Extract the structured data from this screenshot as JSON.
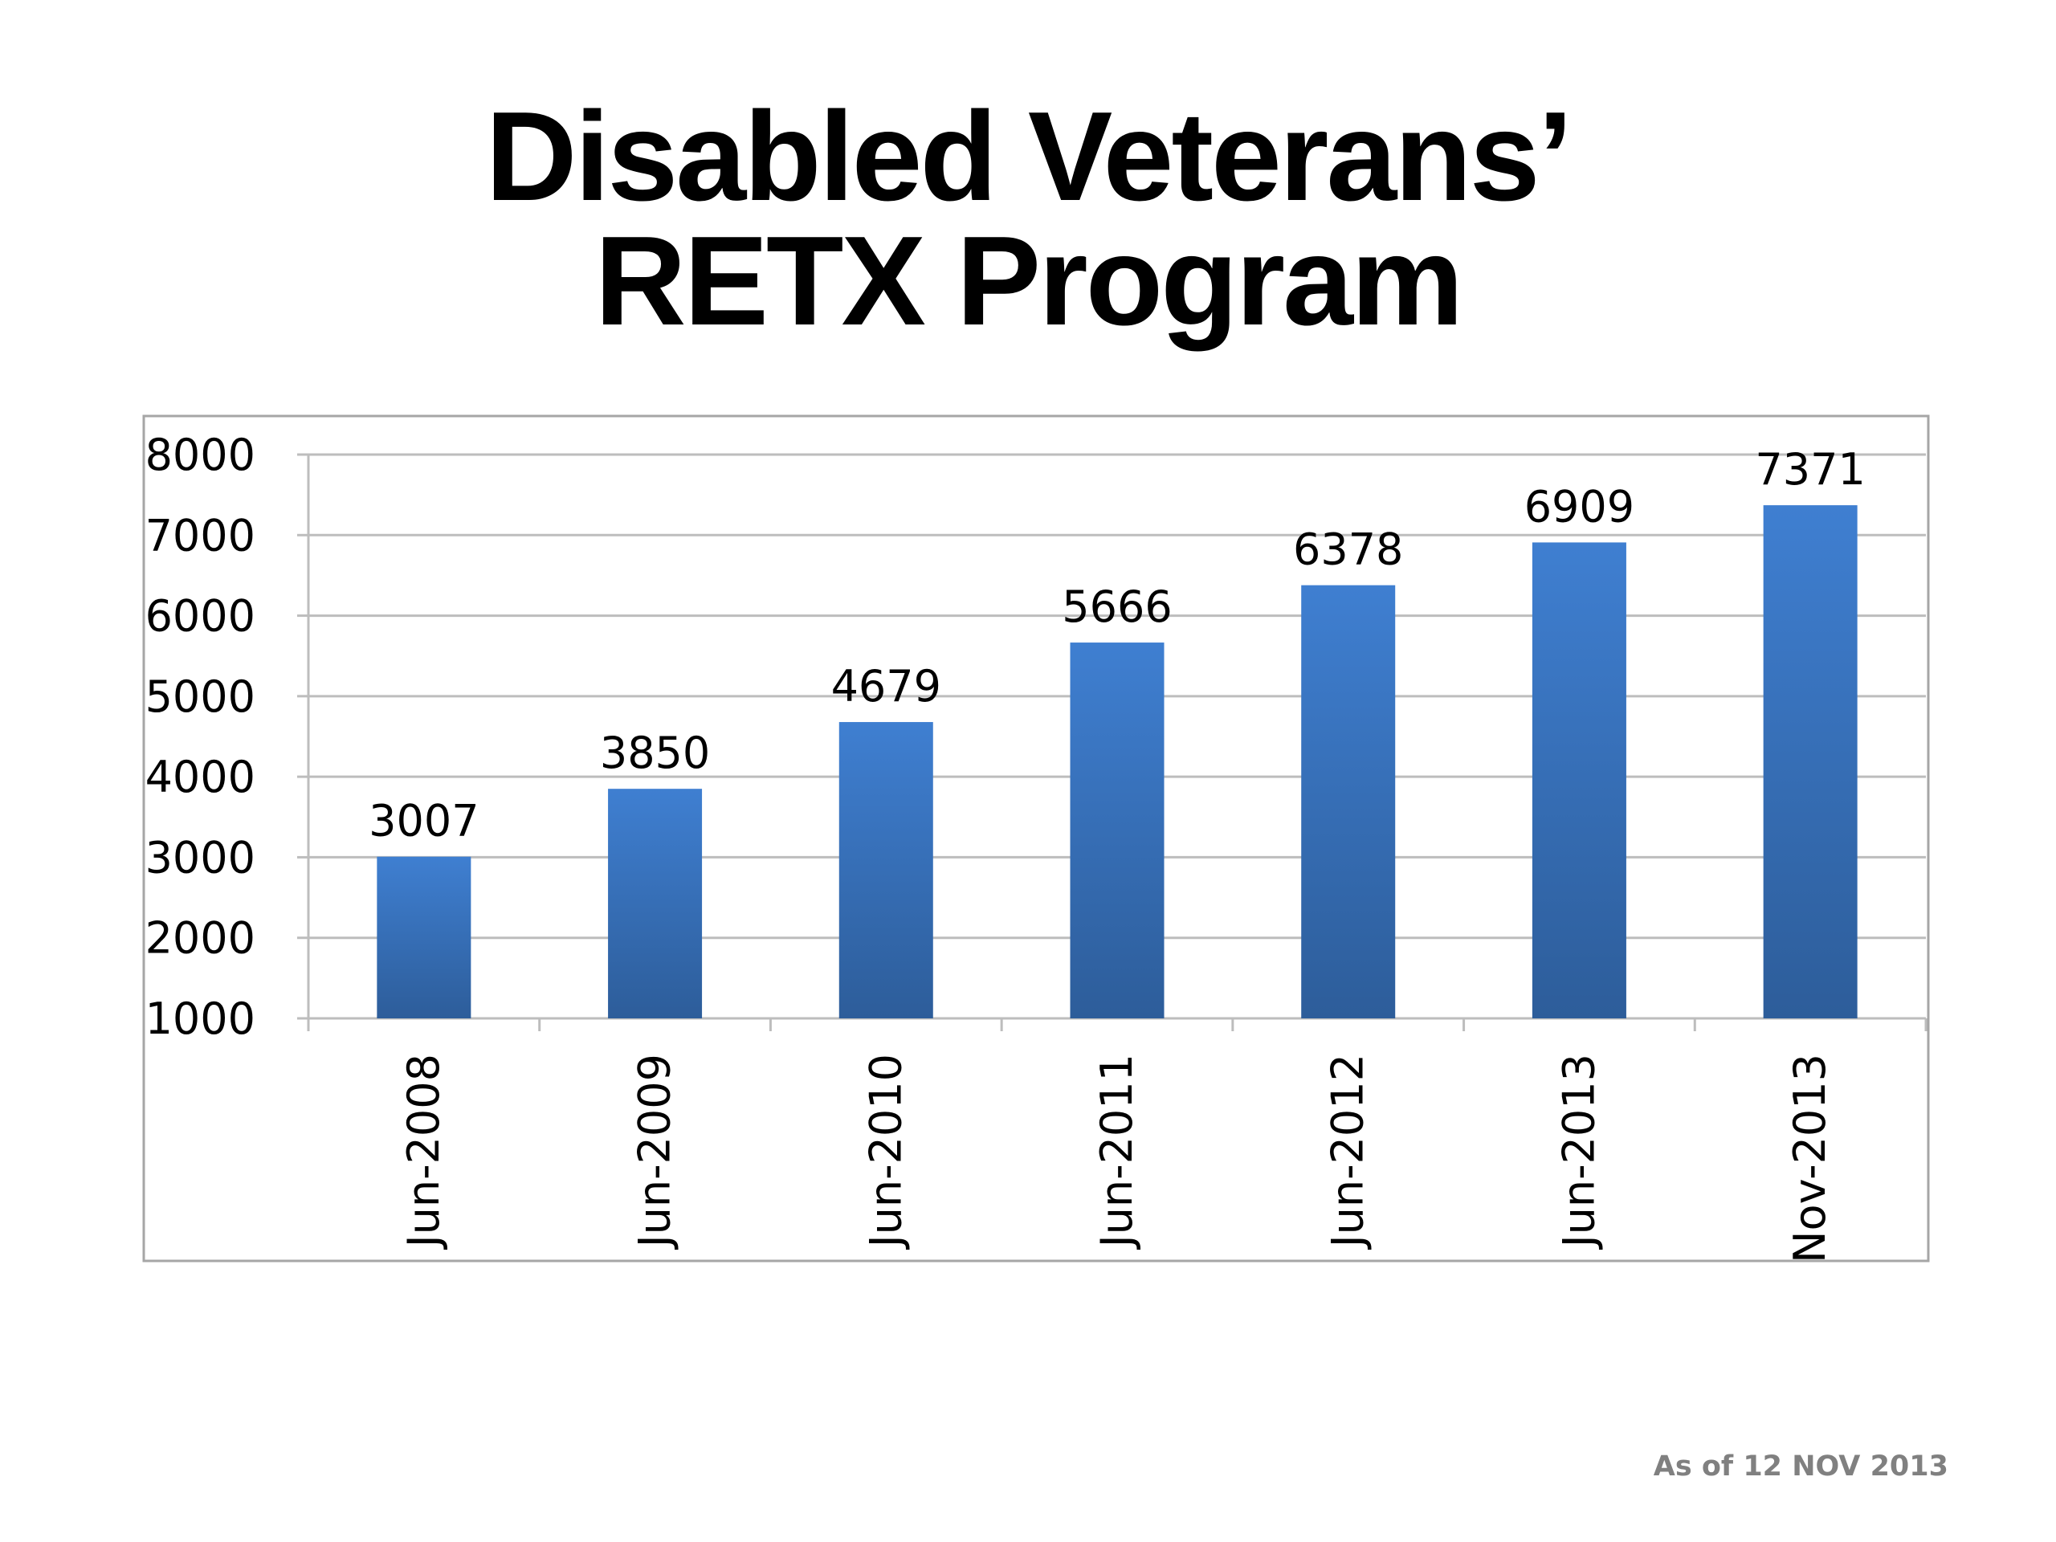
{
  "title": {
    "line1": "Disabled Veterans’",
    "line2": "RETX Program"
  },
  "footnote": "As of 12 NOV 2013",
  "colors": {
    "bar_top": "#3f7fd1",
    "bar_bottom": "#2d5d9a",
    "grid": "#bdbdbd",
    "frame": "#a6a6a6"
  },
  "chart_data": {
    "type": "bar",
    "categories": [
      "Jun-2008",
      "Jun-2009",
      "Jun-2010",
      "Jun-2011",
      "Jun-2012",
      "Jun-2013",
      "Nov-2013"
    ],
    "values": [
      3007,
      3850,
      4679,
      5666,
      6378,
      6909,
      7371
    ],
    "ylim": [
      1000,
      8000
    ],
    "yticks": [
      1000,
      2000,
      3000,
      4000,
      5000,
      6000,
      7000,
      8000
    ],
    "grid": true,
    "legend": "none",
    "data_labels": true
  }
}
